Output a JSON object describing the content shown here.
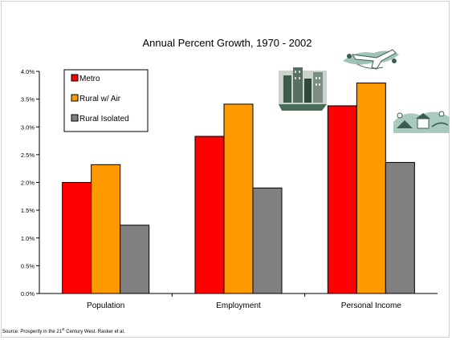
{
  "chart_data": {
    "type": "bar",
    "title": "Annual Percent Growth, 1970 - 2002",
    "categories": [
      "Population",
      "Employment",
      "Personal Income"
    ],
    "series": [
      {
        "name": "Metro",
        "color": "#ff0000",
        "values": [
          2.0,
          2.83,
          3.38
        ]
      },
      {
        "name": "Rural w/ Air",
        "color": "#ff9900",
        "values": [
          2.32,
          3.41,
          3.79
        ]
      },
      {
        "name": "Rural Isolated",
        "color": "#808080",
        "values": [
          1.23,
          1.9,
          2.36
        ]
      }
    ],
    "yticks": [
      "0.0%",
      "0.5%",
      "1.0%",
      "1.5%",
      "2.0%",
      "2.5%",
      "3.0%",
      "3.5%",
      "4.0%"
    ],
    "ylim": [
      0,
      4.0
    ],
    "grid": false,
    "legend_position": "top-left"
  },
  "source": {
    "prefix": "Source: Prosperity in the 21",
    "sup": "st",
    "suffix": " Century West. Rasker et al."
  },
  "illustrations": [
    "city-buildings-icon",
    "airplane-icon",
    "rural-farm-icon"
  ]
}
